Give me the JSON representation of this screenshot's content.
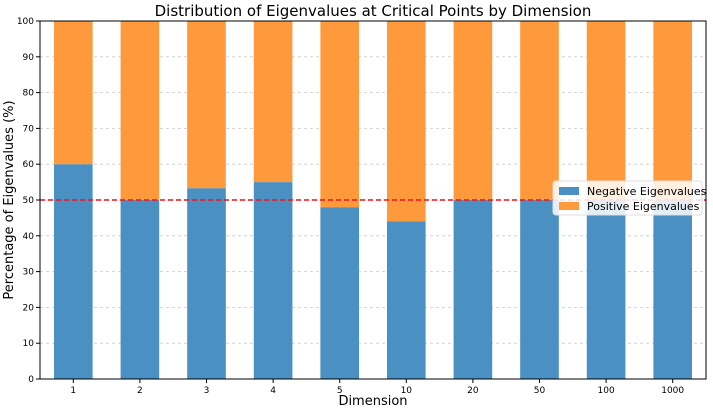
{
  "chart_data": {
    "type": "bar",
    "stacked": true,
    "title": "Distribution of Eigenvalues at Critical Points by Dimension",
    "xlabel": "Dimension",
    "ylabel": "Percentage of Eigenvalues (%)",
    "categories": [
      "1",
      "2",
      "3",
      "4",
      "5",
      "10",
      "20",
      "50",
      "100",
      "1000"
    ],
    "ylim": [
      0,
      100
    ],
    "yticks": [
      0,
      10,
      20,
      30,
      40,
      50,
      60,
      70,
      80,
      90,
      100
    ],
    "grid": "horizontal dashed",
    "legend_position": "center-right",
    "series": [
      {
        "name": "Negative Eigenvalues",
        "color": "#4a90c2",
        "values": [
          60,
          50,
          53.3,
          55,
          48,
          44,
          50,
          50,
          50,
          50
        ]
      },
      {
        "name": "Positive Eigenvalues",
        "color": "#ff9a3c",
        "values": [
          40,
          50,
          46.7,
          45,
          52,
          56,
          50,
          50,
          50,
          50
        ]
      }
    ],
    "reference_line": {
      "y": 50,
      "color": "#e8141a",
      "style": "dashed"
    }
  }
}
